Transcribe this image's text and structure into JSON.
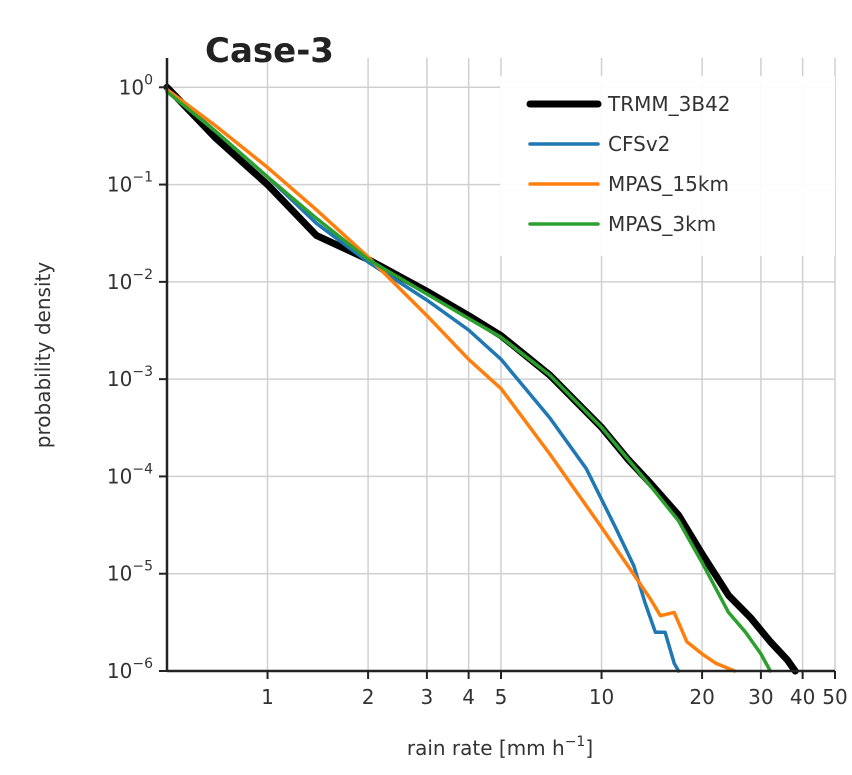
{
  "chart_data": {
    "type": "line",
    "title": "Case-3",
    "xlabel": "rain rate [mm h",
    "xlabel_sup": "−1",
    "xlabel_end": "]",
    "ylabel": "probability density",
    "xscale": "log",
    "yscale": "log",
    "xlim": [
      0.5,
      50
    ],
    "ylim": [
      1e-06,
      2
    ],
    "grid": true,
    "legend_position": "top-right",
    "x_ticks": [
      {
        "value": 1,
        "label": "1"
      },
      {
        "value": 2,
        "label": "2"
      },
      {
        "value": 3,
        "label": "3"
      },
      {
        "value": 4,
        "label": "4"
      },
      {
        "value": 5,
        "label": "5"
      },
      {
        "value": 10,
        "label": "10"
      },
      {
        "value": 20,
        "label": "20"
      },
      {
        "value": 30,
        "label": "30"
      },
      {
        "value": 40,
        "label": "40"
      },
      {
        "value": 50,
        "label": "50"
      }
    ],
    "y_ticks": [
      {
        "value": 1,
        "base": "10",
        "exp": "0"
      },
      {
        "value": 0.1,
        "base": "10",
        "exp": "−1"
      },
      {
        "value": 0.01,
        "base": "10",
        "exp": "−2"
      },
      {
        "value": 0.001,
        "base": "10",
        "exp": "−3"
      },
      {
        "value": 0.0001,
        "base": "10",
        "exp": "−4"
      },
      {
        "value": 1e-05,
        "base": "10",
        "exp": "−5"
      },
      {
        "value": 1e-06,
        "base": "10",
        "exp": "−6"
      }
    ],
    "series": [
      {
        "name": "TRMM_3B42",
        "color": "#000000",
        "width": 7,
        "x": [
          0.5,
          0.7,
          1.0,
          1.4,
          2.0,
          3.0,
          4.0,
          5.0,
          7.0,
          10.0,
          12.0,
          14.0,
          17.0,
          20.0,
          24.0,
          28.0,
          32.0,
          36.0,
          38.0
        ],
        "y": [
          1.0,
          0.3,
          0.1,
          0.03,
          0.017,
          0.008,
          0.0045,
          0.0028,
          0.0011,
          0.00032,
          0.00015,
          8.5e-05,
          4e-05,
          1.6e-05,
          6e-06,
          3.5e-06,
          2e-06,
          1.3e-06,
          1e-06
        ]
      },
      {
        "name": "CFSv2",
        "color": "#1f77b4",
        "width": 3.5,
        "x": [
          0.5,
          0.7,
          1.0,
          1.4,
          2.0,
          3.0,
          4.0,
          5.0,
          7.0,
          9.0,
          11.0,
          12.5,
          13.5,
          14.5,
          15.5,
          16.5,
          17.0
        ],
        "y": [
          0.95,
          0.35,
          0.12,
          0.04,
          0.016,
          0.0065,
          0.0032,
          0.0016,
          0.0004,
          0.00012,
          3e-05,
          1.2e-05,
          5e-06,
          2.5e-06,
          2.5e-06,
          1.2e-06,
          1e-06
        ]
      },
      {
        "name": "MPAS_15km",
        "color": "#ff7f0e",
        "width": 3.5,
        "x": [
          0.5,
          0.7,
          1.0,
          1.4,
          2.0,
          3.0,
          4.0,
          5.0,
          7.0,
          10.0,
          12.0,
          14.0,
          15.0,
          16.5,
          18.0,
          20.0,
          22.0,
          25.0
        ],
        "y": [
          0.95,
          0.4,
          0.15,
          0.055,
          0.018,
          0.0045,
          0.0016,
          0.0008,
          0.00017,
          3e-05,
          1.2e-05,
          5.5e-06,
          3.7e-06,
          4e-06,
          2e-06,
          1.5e-06,
          1.2e-06,
          1e-06
        ]
      },
      {
        "name": "MPAS_3km",
        "color": "#2ca02c",
        "width": 3.5,
        "x": [
          0.5,
          0.7,
          1.0,
          1.4,
          2.0,
          3.0,
          4.0,
          5.0,
          7.0,
          10.0,
          12.0,
          14.0,
          17.0,
          20.0,
          24.0,
          27.0,
          30.0,
          32.0
        ],
        "y": [
          0.9,
          0.35,
          0.12,
          0.045,
          0.017,
          0.0075,
          0.0042,
          0.0027,
          0.0011,
          0.00032,
          0.00015,
          8e-05,
          3.5e-05,
          1.3e-05,
          4e-06,
          2.5e-06,
          1.5e-06,
          1e-06
        ]
      }
    ]
  }
}
